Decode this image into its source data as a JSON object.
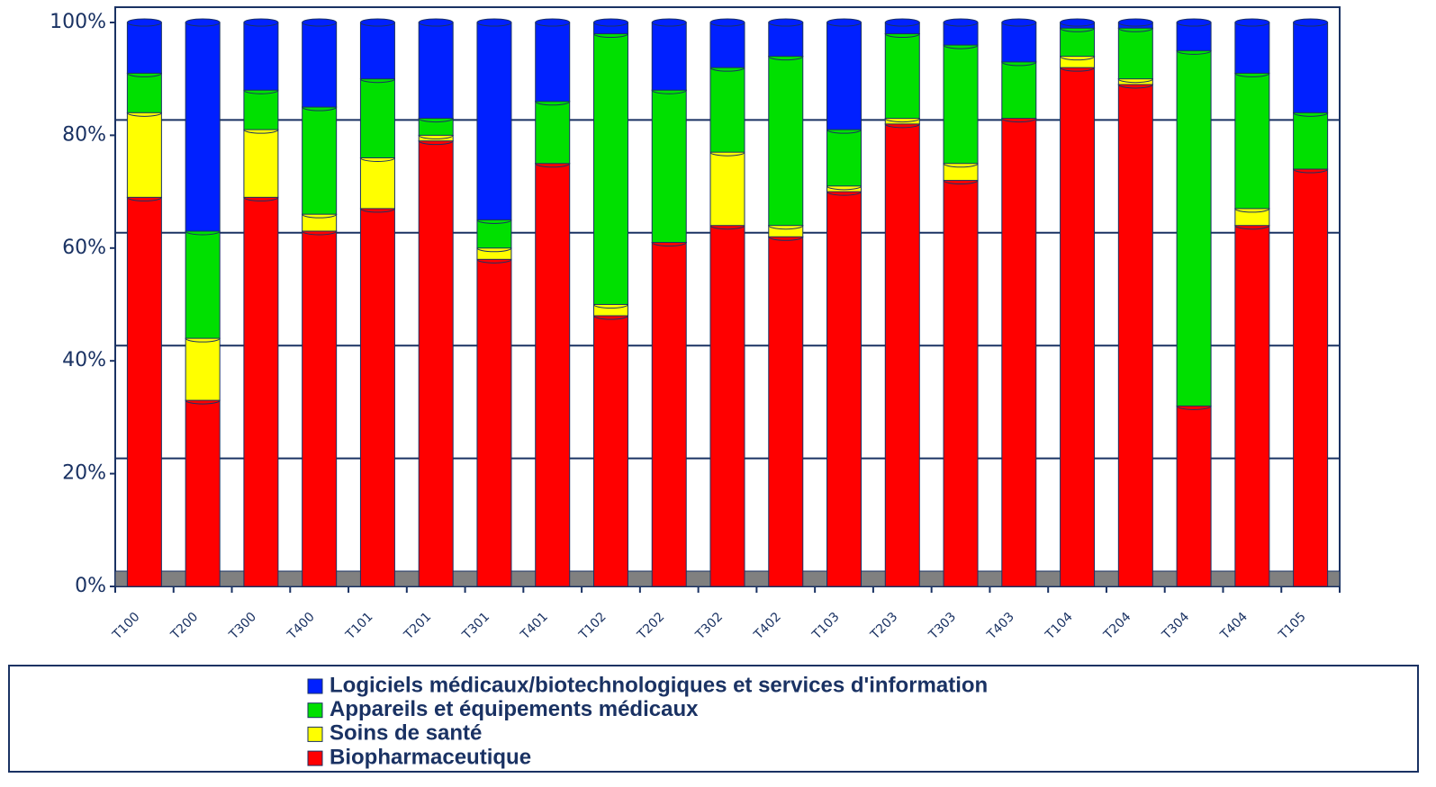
{
  "chart_data": {
    "type": "bar",
    "stacked": true,
    "categories": [
      "T100",
      "T200",
      "T300",
      "T400",
      "T101",
      "T201",
      "T301",
      "T401",
      "T102",
      "T202",
      "T302",
      "T402",
      "T103",
      "T203",
      "T303",
      "T403",
      "T104",
      "T204",
      "T304",
      "T404",
      "T105"
    ],
    "series": [
      {
        "name": "Biopharmaceutique",
        "color": "#ff0000",
        "values": [
          69,
          33,
          69,
          63,
          67,
          79,
          58,
          75,
          48,
          61,
          64,
          62,
          70,
          82,
          72,
          83,
          92,
          89,
          32,
          64,
          74
        ]
      },
      {
        "name": "Soins de santé",
        "color": "#ffff00",
        "values": [
          15,
          11,
          12,
          3,
          9,
          1,
          2,
          0,
          2,
          0,
          13,
          2,
          1,
          1,
          3,
          0,
          2,
          1,
          0,
          3,
          0
        ]
      },
      {
        "name": "Appareils et équipements médicaux",
        "color": "#00e000",
        "values": [
          7,
          19,
          7,
          19,
          14,
          3,
          5,
          11,
          48,
          27,
          15,
          30,
          10,
          15,
          21,
          10,
          5,
          9,
          63,
          24,
          10
        ]
      },
      {
        "name": "Logiciels médicaux/biotechnologiques et services d'information",
        "color": "#0020ff",
        "values": [
          9,
          37,
          12,
          15,
          10,
          17,
          35,
          14,
          2,
          12,
          8,
          6,
          19,
          2,
          4,
          7,
          1,
          1,
          5,
          9,
          16
        ]
      }
    ],
    "ylim": [
      0,
      100
    ],
    "yticks": [
      {
        "value": 0,
        "label": "0%"
      },
      {
        "value": 20,
        "label": "20%"
      },
      {
        "value": 40,
        "label": "40%"
      },
      {
        "value": 60,
        "label": "60%"
      },
      {
        "value": 80,
        "label": "80%"
      },
      {
        "value": 100,
        "label": "100%"
      }
    ],
    "grid": true
  }
}
